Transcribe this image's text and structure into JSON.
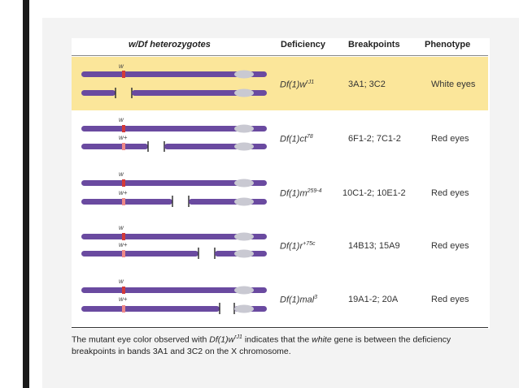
{
  "headers": {
    "genotype": "w/Df heterozygotes",
    "deficiency": "Deficiency",
    "breakpoints": "Breakpoints",
    "phenotype": "Phenotype"
  },
  "rows": [
    {
      "top_label": "w",
      "bottom_label": "",
      "def_base": "Df(1)w",
      "def_sup": "rJ1",
      "breakpoints": "3A1; 3C2",
      "phenotype": "White eyes"
    },
    {
      "top_label": "w",
      "bottom_label": "w+",
      "def_base": "Df(1)ct",
      "def_sup": "78",
      "breakpoints": "6F1-2; 7C1-2",
      "phenotype": "Red eyes"
    },
    {
      "top_label": "w",
      "bottom_label": "w+",
      "def_base": "Df(1)m",
      "def_sup": "259-4",
      "breakpoints": "10C1-2; 10E1-2",
      "phenotype": "Red eyes"
    },
    {
      "top_label": "w",
      "bottom_label": "w+",
      "def_base": "Df(1)r",
      "def_sup": "+75c",
      "breakpoints": "14B13; 15A9",
      "phenotype": "Red eyes"
    },
    {
      "top_label": "w",
      "bottom_label": "w+",
      "def_base": "Df(1)mal",
      "def_sup": "3",
      "breakpoints": "19A1-2; 20A",
      "phenotype": "Red eyes"
    }
  ],
  "caption": {
    "part1": "The mutant eye color observed with ",
    "def_base": "Df(1)w",
    "def_sup": "rJ1",
    "part2": " indicates that the ",
    "gene": "white",
    "part3": " gene is between the deficiency breakpoints in bands 3A1 and 3C2 on the X chromosome."
  },
  "colors": {
    "chromosome": "#6a4aa0",
    "centromere": "#c9c9d2",
    "locus": "#d23a3a",
    "highlight": "#fbe69a"
  }
}
